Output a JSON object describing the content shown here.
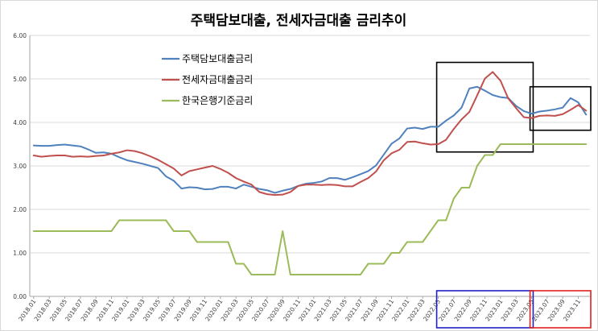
{
  "chart_data": {
    "type": "line",
    "title": "주택담보대출, 전세자금대출 금리추이",
    "xlabel": "",
    "ylabel": "",
    "ylim": [
      0,
      6
    ],
    "yticks": [
      "0.00",
      "1.00",
      "2.00",
      "3.00",
      "4.00",
      "5.00",
      "6.00"
    ],
    "grid": "horizontal",
    "legend_position": "top-left",
    "x": [
      "2018.01",
      "2018.02",
      "2018.03",
      "2018.04",
      "2018.05",
      "2018.06",
      "2018.07",
      "2018.08",
      "2018.09",
      "2018.10",
      "2018.11",
      "2018.12",
      "2019.01",
      "2019.02",
      "2019.03",
      "2019.04",
      "2019.05",
      "2019.06",
      "2019.07",
      "2019.08",
      "2019.09",
      "2019.10",
      "2019.11",
      "2019.12",
      "2020.01",
      "2020.02",
      "2020.03",
      "2020.04",
      "2020.05",
      "2020.06",
      "2020.07",
      "2020.08",
      "2020.09",
      "2020.10",
      "2020.11",
      "2020.12",
      "2021.01",
      "2021.02",
      "2021.03",
      "2021.04",
      "2021.05",
      "2021.06",
      "2021.07",
      "2021.08",
      "2021.09",
      "2021.10",
      "2021.11",
      "2021.12",
      "2022.01",
      "2022.02",
      "2022.03",
      "2022.04",
      "2022.05",
      "2022.06",
      "2022.07",
      "2022.08",
      "2022.09",
      "2022.10",
      "2022.11",
      "2022.12",
      "2023.01",
      "2023.02",
      "2023.03",
      "2023.04",
      "2023.05",
      "2023.06",
      "2023.07",
      "2023.08",
      "2023.09",
      "2023.10",
      "2023.11",
      "2023.12"
    ],
    "xtick_labels": [
      "2018.01",
      "2018.03",
      "2018.05",
      "2018.07",
      "2018.09",
      "2018.11",
      "2019.01",
      "2019.03",
      "2019.05",
      "2019.07",
      "2019.09",
      "2019.11",
      "2020.01",
      "2020.03",
      "2020.05",
      "2020.07",
      "2020.09",
      "2020.11",
      "2021.01",
      "2021.03",
      "2021.05",
      "2021.07",
      "2021.09",
      "2021.11",
      "2022.01",
      "2022.03",
      "2022.05",
      "2022.07",
      "2022.09",
      "2022.11",
      "2023.01",
      "2023.03",
      "2023.05",
      "2023.07",
      "2023.09",
      "2023.11"
    ],
    "series": [
      {
        "name": "주택담보대출금리",
        "color": "#4f81bd",
        "values": [
          3.47,
          3.46,
          3.46,
          3.48,
          3.49,
          3.47,
          3.45,
          3.38,
          3.3,
          3.31,
          3.28,
          3.2,
          3.13,
          3.09,
          3.05,
          3.0,
          2.95,
          2.76,
          2.66,
          2.48,
          2.51,
          2.5,
          2.46,
          2.47,
          2.52,
          2.52,
          2.48,
          2.57,
          2.52,
          2.47,
          2.44,
          2.38,
          2.43,
          2.47,
          2.54,
          2.59,
          2.61,
          2.64,
          2.72,
          2.72,
          2.68,
          2.74,
          2.81,
          2.88,
          3.01,
          3.26,
          3.51,
          3.63,
          3.86,
          3.88,
          3.85,
          3.9,
          3.9,
          4.04,
          4.16,
          4.34,
          4.78,
          4.82,
          4.73,
          4.63,
          4.58,
          4.56,
          4.38,
          4.26,
          4.2,
          4.25,
          4.27,
          4.3,
          4.34,
          4.56,
          4.46,
          4.18
        ]
      },
      {
        "name": "전세자금대출금리",
        "color": "#c0504d",
        "values": [
          3.24,
          3.21,
          3.23,
          3.24,
          3.24,
          3.21,
          3.22,
          3.21,
          3.23,
          3.24,
          3.28,
          3.31,
          3.36,
          3.34,
          3.29,
          3.22,
          3.14,
          3.04,
          2.94,
          2.78,
          2.88,
          2.92,
          2.96,
          3.0,
          2.93,
          2.84,
          2.72,
          2.64,
          2.57,
          2.4,
          2.35,
          2.33,
          2.34,
          2.4,
          2.54,
          2.57,
          2.57,
          2.56,
          2.57,
          2.56,
          2.53,
          2.53,
          2.63,
          2.72,
          2.87,
          3.13,
          3.29,
          3.37,
          3.55,
          3.56,
          3.52,
          3.49,
          3.5,
          3.6,
          3.85,
          4.07,
          4.24,
          4.62,
          5.01,
          5.16,
          4.96,
          4.55,
          4.33,
          4.12,
          4.1,
          4.15,
          4.16,
          4.15,
          4.19,
          4.29,
          4.4,
          4.27
        ]
      },
      {
        "name": "한국은행기준금리",
        "color": "#9bbb59",
        "values": [
          1.5,
          1.5,
          1.5,
          1.5,
          1.5,
          1.5,
          1.5,
          1.5,
          1.5,
          1.5,
          1.5,
          1.75,
          1.75,
          1.75,
          1.75,
          1.75,
          1.75,
          1.75,
          1.5,
          1.5,
          1.5,
          1.25,
          1.25,
          1.25,
          1.25,
          1.25,
          0.75,
          0.75,
          0.5,
          0.5,
          0.5,
          0.5,
          1.5,
          0.5,
          0.5,
          0.5,
          0.5,
          0.5,
          0.5,
          0.5,
          0.5,
          0.5,
          0.5,
          0.75,
          0.75,
          0.75,
          1.0,
          1.0,
          1.25,
          1.25,
          1.25,
          1.5,
          1.75,
          1.75,
          2.25,
          2.5,
          2.5,
          3.0,
          3.25,
          3.25,
          3.5,
          3.5,
          3.5,
          3.5,
          3.5,
          3.5,
          3.5,
          3.5,
          3.5,
          3.5,
          3.5,
          3.5
        ]
      }
    ],
    "highlight_boxes": [
      {
        "color": "#000000",
        "x_from": "2022.05",
        "x_to": "2023.05",
        "y_from": 3.32,
        "y_to": 5.38
      },
      {
        "color": "#000000",
        "x_from": "2023.05",
        "x_to": "2023.12",
        "y_from": 3.82,
        "y_to": 4.82
      },
      {
        "color": "#1f1fbf",
        "x_from": "2022.05",
        "x_to": "2023.05",
        "region": "x-axis-labels"
      },
      {
        "color": "#e0201e",
        "x_from": "2023.05",
        "x_to": "2023.12",
        "region": "x-axis-labels"
      }
    ]
  }
}
